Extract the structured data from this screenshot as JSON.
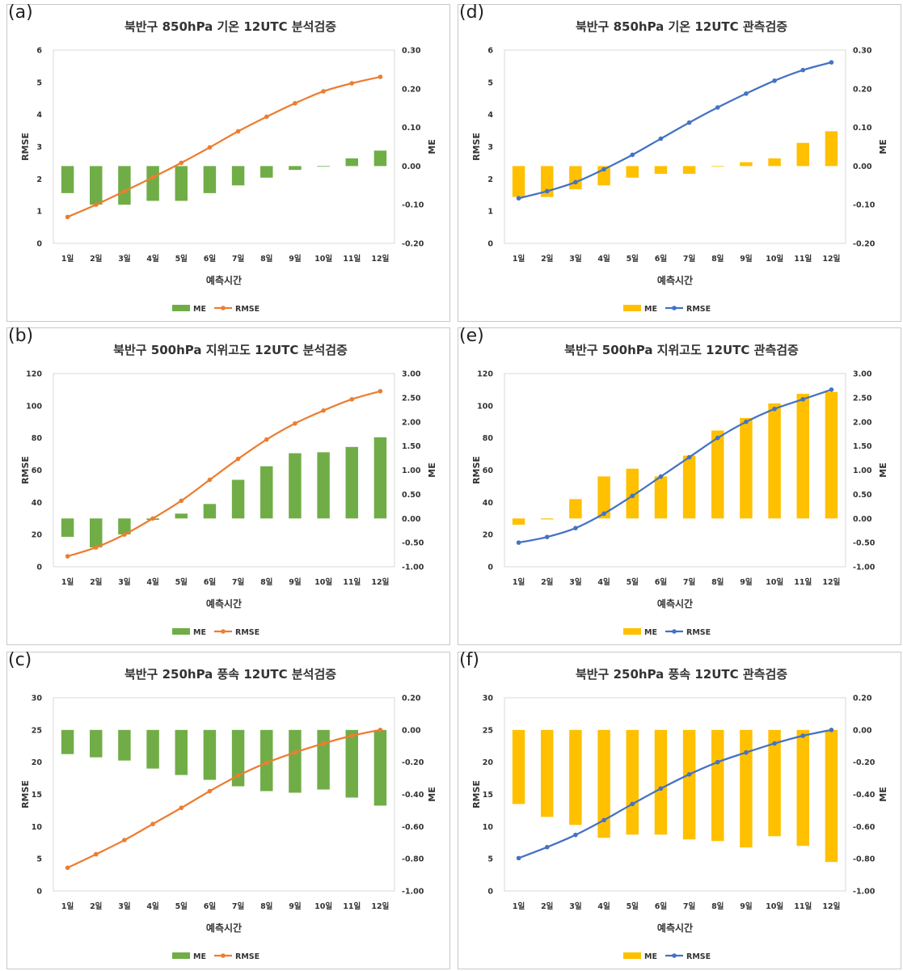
{
  "chart_data": [
    {
      "panel": "(a)",
      "type": "bar",
      "title": "북반구 850hPa 기온 12UTC 분석검증",
      "categories": [
        "1일",
        "2일",
        "3일",
        "4일",
        "5일",
        "6일",
        "7일",
        "8일",
        "9일",
        "10일",
        "11일",
        "12일"
      ],
      "xlabel": "예측시간",
      "ylabel": "RMSE",
      "y2label": "ME",
      "ylim": [
        0,
        6
      ],
      "yticks": [
        "0",
        "1",
        "2",
        "3",
        "4",
        "5",
        "6"
      ],
      "y2lim": [
        -0.2,
        0.3
      ],
      "y2ticks": [
        "-0.20",
        "-0.10",
        "0.00",
        "0.10",
        "0.20",
        "0.30"
      ],
      "series": [
        {
          "name": "ME",
          "kind": "bar",
          "axis": "right",
          "color": "#70AD47",
          "values": [
            -0.07,
            -0.1,
            -0.1,
            -0.09,
            -0.09,
            -0.07,
            -0.05,
            -0.03,
            -0.01,
            0.0,
            0.02,
            0.04
          ]
        },
        {
          "name": "RMSE",
          "kind": "line",
          "axis": "left",
          "color": "#ED7D31",
          "values": [
            0.82,
            1.2,
            1.62,
            2.05,
            2.5,
            2.98,
            3.48,
            3.93,
            4.35,
            4.72,
            4.97,
            5.17
          ]
        }
      ],
      "legend": "bottom"
    },
    {
      "panel": "(d)",
      "type": "bar",
      "title": "북반구 850hPa 기온 12UTC 관측검증",
      "categories": [
        "1일",
        "2일",
        "3일",
        "4일",
        "5일",
        "6일",
        "7일",
        "8일",
        "9일",
        "10일",
        "11일",
        "12일"
      ],
      "xlabel": "예측시간",
      "ylabel": "RMSE",
      "y2label": "ME",
      "ylim": [
        0,
        6
      ],
      "yticks": [
        "0",
        "1",
        "2",
        "3",
        "4",
        "5",
        "6"
      ],
      "y2lim": [
        -0.2,
        0.3
      ],
      "y2ticks": [
        "-0.20",
        "-0.10",
        "0.00",
        "0.10",
        "0.20",
        "0.30"
      ],
      "series": [
        {
          "name": "ME",
          "kind": "bar",
          "axis": "right",
          "color": "#FFC000",
          "values": [
            -0.08,
            -0.08,
            -0.06,
            -0.05,
            -0.03,
            -0.02,
            -0.02,
            0.0,
            0.01,
            0.02,
            0.06,
            0.09
          ]
        },
        {
          "name": "RMSE",
          "kind": "line",
          "axis": "left",
          "color": "#4472C4",
          "values": [
            1.4,
            1.62,
            1.9,
            2.3,
            2.75,
            3.25,
            3.75,
            4.22,
            4.65,
            5.05,
            5.38,
            5.62
          ]
        }
      ],
      "legend": "bottom"
    },
    {
      "panel": "(b)",
      "type": "bar",
      "title": "북반구 500hPa 지위고도 12UTC 분석검증",
      "categories": [
        "1일",
        "2일",
        "3일",
        "4일",
        "5일",
        "6일",
        "7일",
        "8일",
        "9일",
        "10일",
        "11일",
        "12일"
      ],
      "xlabel": "예측시간",
      "ylabel": "RMSE",
      "y2label": "ME",
      "ylim": [
        0,
        120
      ],
      "yticks": [
        "0",
        "20",
        "40",
        "60",
        "80",
        "100",
        "120"
      ],
      "y2lim": [
        -1.0,
        3.0
      ],
      "y2ticks": [
        "-1.00",
        "-0.50",
        "0.00",
        "0.50",
        "1.00",
        "1.50",
        "2.00",
        "2.50",
        "3.00"
      ],
      "series": [
        {
          "name": "ME",
          "kind": "bar",
          "axis": "right",
          "color": "#70AD47",
          "values": [
            -0.38,
            -0.6,
            -0.33,
            -0.03,
            0.1,
            0.3,
            0.8,
            1.08,
            1.35,
            1.37,
            1.48,
            1.68
          ]
        },
        {
          "name": "RMSE",
          "kind": "line",
          "axis": "left",
          "color": "#ED7D31",
          "values": [
            6.5,
            12,
            20,
            30,
            41,
            54,
            67,
            79,
            89,
            97,
            104,
            109
          ]
        }
      ],
      "legend": "bottom"
    },
    {
      "panel": "(e)",
      "type": "bar",
      "title": "북반구 500hPa 지위고도 12UTC 관측검증",
      "categories": [
        "1일",
        "2일",
        "3일",
        "4일",
        "5일",
        "6일",
        "7일",
        "8일",
        "9일",
        "10일",
        "11일",
        "12일"
      ],
      "xlabel": "예측시간",
      "ylabel": "RMSE",
      "y2label": "ME",
      "ylim": [
        0,
        120
      ],
      "yticks": [
        "0",
        "20",
        "40",
        "60",
        "80",
        "100",
        "120"
      ],
      "y2lim": [
        -1.0,
        3.0
      ],
      "y2ticks": [
        "-1.00",
        "-0.50",
        "0.00",
        "0.50",
        "1.00",
        "1.50",
        "2.00",
        "2.50",
        "3.00"
      ],
      "series": [
        {
          "name": "ME",
          "kind": "bar",
          "axis": "right",
          "color": "#FFC000",
          "values": [
            -0.13,
            -0.02,
            0.4,
            0.87,
            1.03,
            0.87,
            1.3,
            1.82,
            2.08,
            2.38,
            2.58,
            2.62
          ]
        },
        {
          "name": "RMSE",
          "kind": "line",
          "axis": "left",
          "color": "#4472C4",
          "values": [
            15,
            18.5,
            24,
            33,
            44,
            56,
            68,
            80,
            90,
            98,
            104,
            110
          ]
        }
      ],
      "legend": "bottom"
    },
    {
      "panel": "(c)",
      "type": "bar",
      "title": "북반구 250hPa 풍속 12UTC 분석검증",
      "categories": [
        "1일",
        "2일",
        "3일",
        "4일",
        "5일",
        "6일",
        "7일",
        "8일",
        "9일",
        "10일",
        "11일",
        "12일"
      ],
      "xlabel": "예측시간",
      "ylabel": "RMSE",
      "y2label": "ME",
      "ylim": [
        0,
        30
      ],
      "yticks": [
        "0",
        "5",
        "10",
        "15",
        "20",
        "25",
        "30"
      ],
      "y2lim": [
        -1.0,
        0.2
      ],
      "y2ticks": [
        "-1.00",
        "-0.80",
        "-0.60",
        "-0.40",
        "-0.20",
        "0.00",
        "0.20"
      ],
      "series": [
        {
          "name": "ME",
          "kind": "bar",
          "axis": "right",
          "color": "#70AD47",
          "values": [
            -0.15,
            -0.17,
            -0.19,
            -0.24,
            -0.28,
            -0.31,
            -0.35,
            -0.38,
            -0.39,
            -0.37,
            -0.42,
            -0.47
          ]
        },
        {
          "name": "RMSE",
          "kind": "line",
          "axis": "left",
          "color": "#ED7D31",
          "values": [
            3.6,
            5.7,
            7.9,
            10.4,
            12.9,
            15.5,
            17.9,
            19.9,
            21.5,
            22.9,
            24.1,
            25.0
          ]
        }
      ],
      "legend": "bottom"
    },
    {
      "panel": "(f)",
      "type": "bar",
      "title": "북반구 250hPa 풍속 12UTC 관측검증",
      "categories": [
        "1일",
        "2일",
        "3일",
        "4일",
        "5일",
        "6일",
        "7일",
        "8일",
        "9일",
        "10일",
        "11일",
        "12일"
      ],
      "xlabel": "예측시간",
      "ylabel": "RMSE",
      "y2label": "ME",
      "ylim": [
        0,
        30
      ],
      "yticks": [
        "0",
        "5",
        "10",
        "15",
        "20",
        "25",
        "30"
      ],
      "y2lim": [
        -1.0,
        0.2
      ],
      "y2ticks": [
        "-1.00",
        "-0.80",
        "-0.60",
        "-0.40",
        "-0.20",
        "0.00",
        "0.20"
      ],
      "series": [
        {
          "name": "ME",
          "kind": "bar",
          "axis": "right",
          "color": "#FFC000",
          "values": [
            -0.46,
            -0.54,
            -0.59,
            -0.67,
            -0.65,
            -0.65,
            -0.68,
            -0.69,
            -0.73,
            -0.66,
            -0.72,
            -0.82
          ]
        },
        {
          "name": "RMSE",
          "kind": "line",
          "axis": "left",
          "color": "#4472C4",
          "values": [
            5.1,
            6.8,
            8.7,
            11.0,
            13.5,
            15.9,
            18.1,
            20.0,
            21.5,
            22.9,
            24.1,
            25.0
          ]
        }
      ],
      "legend": "bottom"
    }
  ]
}
